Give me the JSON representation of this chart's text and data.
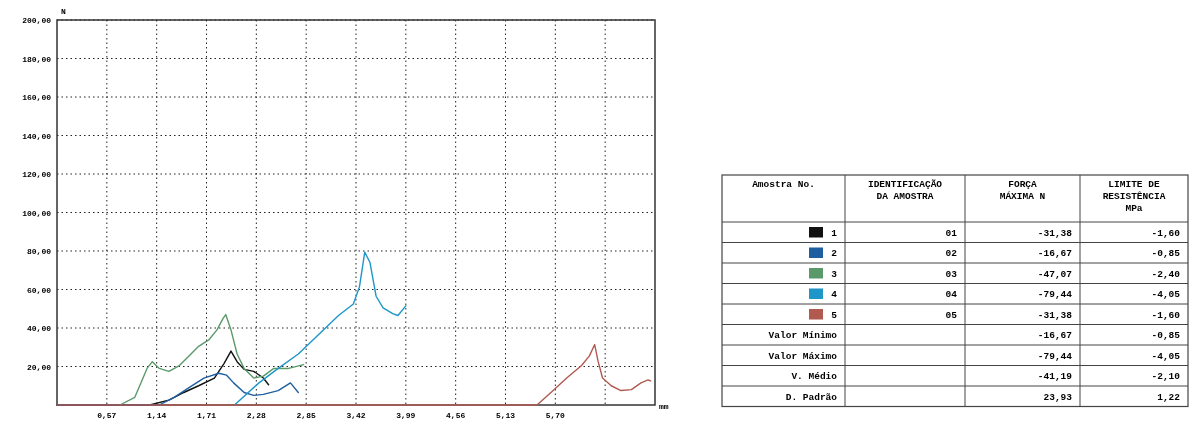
{
  "chart_data": {
    "type": "line",
    "xlabel": "mm",
    "ylabel": "N",
    "legend_title": "Amostra No.",
    "legend": "right",
    "grid": true,
    "xlim": [
      0,
      6.84
    ],
    "ylim": [
      0,
      200
    ],
    "xticks": [
      {
        "value": 0.57,
        "label": "0,57"
      },
      {
        "value": 1.14,
        "label": "1,14"
      },
      {
        "value": 1.71,
        "label": "1,71"
      },
      {
        "value": 2.28,
        "label": "2,28"
      },
      {
        "value": 2.85,
        "label": "2,85"
      },
      {
        "value": 3.42,
        "label": "3,42"
      },
      {
        "value": 3.99,
        "label": "3,99"
      },
      {
        "value": 4.56,
        "label": "4,56"
      },
      {
        "value": 5.13,
        "label": "5,13"
      },
      {
        "value": 5.7,
        "label": "5,70"
      },
      {
        "value": 6.27,
        "label": null
      }
    ],
    "yticks": [
      {
        "value": 20,
        "label": "20,00"
      },
      {
        "value": 40,
        "label": "40,00"
      },
      {
        "value": 60,
        "label": "60,00"
      },
      {
        "value": 80,
        "label": "80,00"
      },
      {
        "value": 100,
        "label": "100,00"
      },
      {
        "value": 120,
        "label": "120,00"
      },
      {
        "value": 140,
        "label": "140,00"
      },
      {
        "value": 160,
        "label": "160,00"
      },
      {
        "value": 180,
        "label": "180,00"
      },
      {
        "value": 200,
        "label": "200,00"
      }
    ],
    "series": [
      {
        "name": "1",
        "color": "#111111",
        "x": [
          0,
          1.06,
          1.28,
          1.45,
          1.62,
          1.8,
          1.91,
          1.99,
          2.06,
          2.14,
          2.25,
          2.36,
          2.42
        ],
        "values": [
          0,
          0,
          2.5,
          6.5,
          10,
          14,
          21.5,
          28,
          22.5,
          18.5,
          17.5,
          14,
          10.5
        ]
      },
      {
        "name": "2",
        "color": "#1f5fa0",
        "x": [
          0,
          1.17,
          1.34,
          1.51,
          1.68,
          1.85,
          1.94,
          2.02,
          2.14,
          2.25,
          2.36,
          2.53,
          2.67,
          2.76
        ],
        "values": [
          0,
          0,
          4,
          9,
          14,
          16.5,
          15.5,
          11.5,
          6.5,
          5,
          5.5,
          7.5,
          11.5,
          6.5
        ]
      },
      {
        "name": "3",
        "color": "#5a9a6a",
        "x": [
          0.72,
          0.89,
          1.03,
          1.09,
          1.17,
          1.28,
          1.4,
          1.51,
          1.62,
          1.74,
          1.83,
          1.9,
          1.93,
          1.99,
          2.06,
          2.14,
          2.25,
          2.36,
          2.48,
          2.65,
          2.82
        ],
        "values": [
          0,
          4,
          19,
          22.5,
          19,
          17.5,
          20.5,
          25.5,
          30.5,
          34,
          39,
          45,
          47,
          39,
          26.5,
          19,
          14,
          15,
          19,
          19,
          21
        ]
      },
      {
        "name": "4",
        "color": "#1e96c8",
        "x": [
          2.03,
          2.31,
          2.53,
          2.76,
          2.99,
          3.22,
          3.39,
          3.46,
          3.52,
          3.58,
          3.65,
          3.73,
          3.84,
          3.9,
          3.99
        ],
        "values": [
          0,
          11.5,
          19,
          26.5,
          36.5,
          46.5,
          52.5,
          61.5,
          79.4,
          74,
          56.5,
          50.5,
          47.5,
          46.5,
          51.5
        ]
      },
      {
        "name": "5",
        "color": "#b05a50",
        "x": [
          0,
          5.49,
          5.65,
          5.83,
          6,
          6.09,
          6.15,
          6.19,
          6.24,
          6.34,
          6.45,
          6.57,
          6.68,
          6.76,
          6.79
        ],
        "values": [
          0,
          0,
          6.5,
          14,
          20.5,
          25.5,
          31.4,
          22.5,
          14,
          10,
          7.5,
          8,
          11.5,
          13,
          12.5
        ]
      }
    ],
    "annotations": [
      "IDENTIFICAÇÃO DA AMOSTRA",
      "FORÇA MÁXIMA N",
      "LIMITE DE RESISTÊNCIA MPa",
      "01",
      "-31,38",
      "-1,60",
      "02",
      "-16,67",
      "-0,85",
      "03",
      "-47,07",
      "-2,40",
      "04",
      "-79,44",
      "-4,05",
      "05",
      "-31,38",
      "-1,60",
      "Valor Mínimo",
      "-16,67",
      "-0,85",
      "Valor Máximo",
      "-79,44",
      "-4,05",
      "V. Médio",
      "-41,19",
      "-2,10",
      "D. Padrão",
      "23,93",
      "1,22"
    ]
  }
}
